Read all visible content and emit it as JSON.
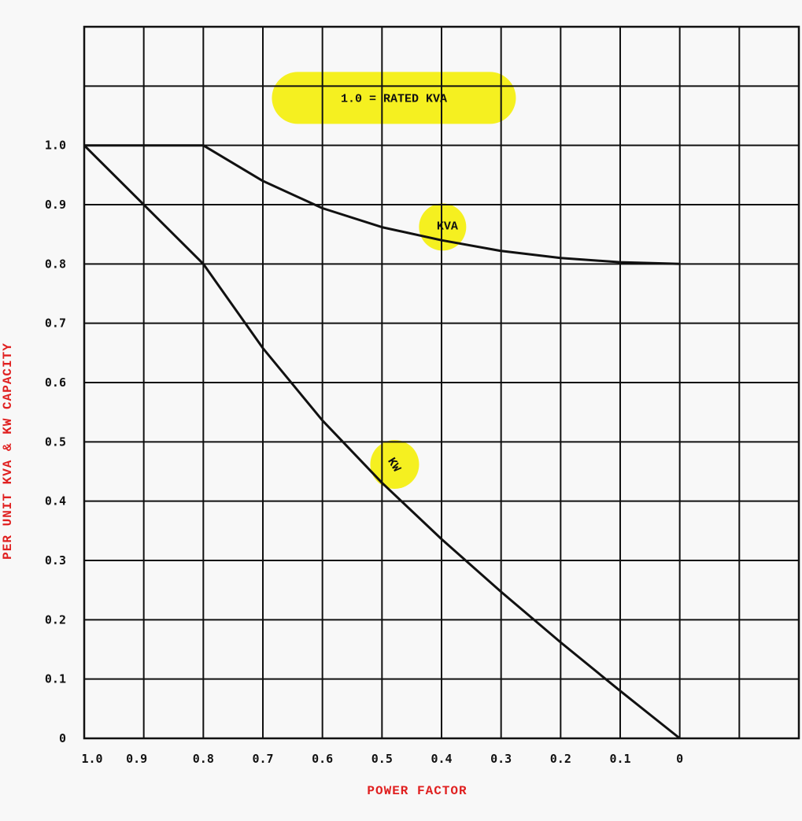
{
  "chart_data": {
    "type": "line",
    "xlabel": "POWER FACTOR",
    "ylabel": "PER UNIT KVA & KW CAPACITY",
    "x_tick_labels": [
      "1.0",
      "0.9",
      "0.8",
      "0.7",
      "0.6",
      "0.5",
      "0.4",
      "0.3",
      "0.2",
      "0.1",
      "0"
    ],
    "x_ticks": [
      1.0,
      0.9,
      0.8,
      0.7,
      0.6,
      0.5,
      0.4,
      0.3,
      0.2,
      0.1,
      0
    ],
    "y_tick_labels": [
      "0",
      "0.1",
      "0.2",
      "0.3",
      "0.4",
      "0.5",
      "0.6",
      "0.7",
      "0.8",
      "0.9",
      "1.0"
    ],
    "y_ticks": [
      0,
      0.1,
      0.2,
      0.3,
      0.4,
      0.5,
      0.6,
      0.7,
      0.8,
      0.9,
      1.0
    ],
    "xlim": [
      1.0,
      -0.2
    ],
    "ylim": [
      0,
      1.2
    ],
    "grid": true,
    "series": [
      {
        "name": "KVA",
        "x": [
          1.0,
          0.8,
          0.7,
          0.6,
          0.5,
          0.4,
          0.3,
          0.2,
          0.1,
          0
        ],
        "y": [
          1.0,
          1.0,
          0.94,
          0.894,
          0.862,
          0.84,
          0.822,
          0.81,
          0.803,
          0.8
        ]
      },
      {
        "name": "KW",
        "x": [
          1.0,
          0.8,
          0.7,
          0.6,
          0.5,
          0.4,
          0.3,
          0.2,
          0.1,
          0
        ],
        "y": [
          1.0,
          0.8,
          0.658,
          0.536,
          0.431,
          0.336,
          0.247,
          0.162,
          0.08,
          0.0
        ]
      }
    ],
    "annotations": [
      {
        "text": "1.0 = RATED KVA",
        "x": 0.48,
        "y": 1.08
      },
      {
        "text": "KVA",
        "x": 0.385,
        "y": 0.865
      },
      {
        "text": "KW",
        "x": 0.48,
        "y": 0.462
      }
    ],
    "highlight_color": "#f5f020",
    "axis_title_color": "#e02020"
  }
}
